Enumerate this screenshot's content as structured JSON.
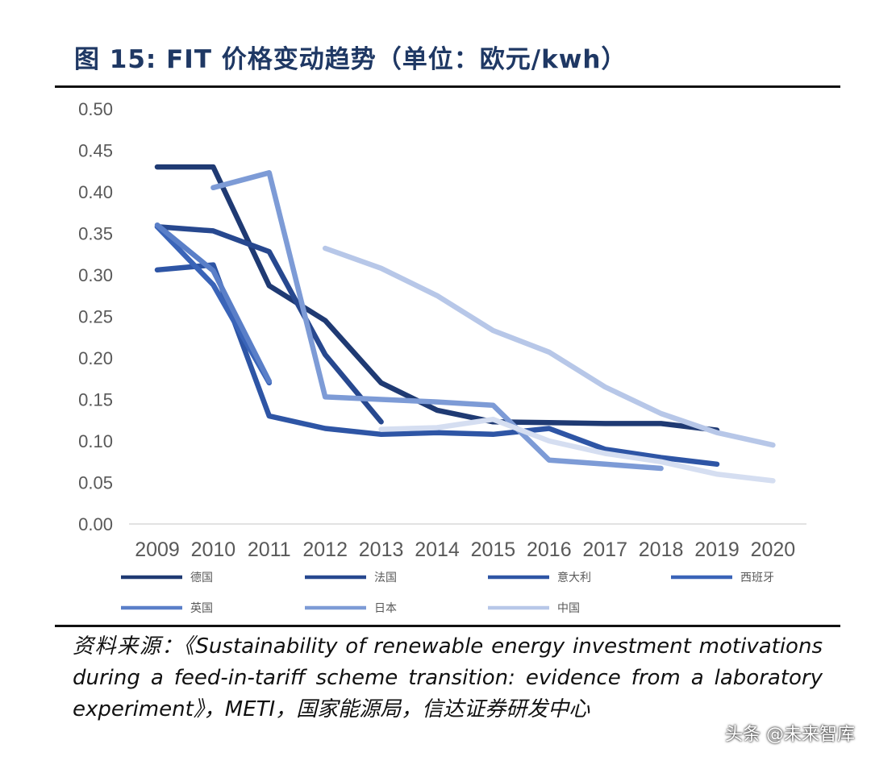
{
  "title": "图 15:  FIT 价格变动趋势（单位：欧元/kwh）",
  "source": "资料来源：《Sustainability of renewable energy investment motivations during a feed-in-tariff scheme transition: evidence from a laboratory experiment》，METI，国家能源局，信达证券研发中心",
  "watermark": "头条 @未来智库",
  "chart_data": {
    "type": "line",
    "title": "FIT 价格变动趋势（单位：欧元/kwh）",
    "xlabel": "",
    "ylabel": "",
    "x": [
      2009,
      2010,
      2011,
      2012,
      2013,
      2014,
      2015,
      2016,
      2017,
      2018,
      2019,
      2020
    ],
    "ylim": [
      0,
      0.5
    ],
    "yticks": [
      "0.00",
      "0.05",
      "0.10",
      "0.15",
      "0.20",
      "0.25",
      "0.30",
      "0.35",
      "0.40",
      "0.45",
      "0.50"
    ],
    "grid": false,
    "legend_position": "bottom",
    "series": [
      {
        "name": "德国",
        "color": "#1f3a73",
        "points": [
          [
            2009,
            0.43
          ],
          [
            2010,
            0.43
          ],
          [
            2011,
            0.287
          ],
          [
            2012,
            0.245
          ],
          [
            2013,
            0.17
          ],
          [
            2014,
            0.137
          ],
          [
            2015,
            0.123
          ],
          [
            2016,
            0.122
          ],
          [
            2017,
            0.121
          ],
          [
            2018,
            0.121
          ],
          [
            2019,
            0.113
          ]
        ]
      },
      {
        "name": "法国",
        "color": "#27488f",
        "points": [
          [
            2009,
            0.358
          ],
          [
            2010,
            0.353
          ],
          [
            2011,
            0.328
          ],
          [
            2012,
            0.204
          ],
          [
            2013,
            0.123
          ]
        ]
      },
      {
        "name": "意大利",
        "color": "#2e55a5",
        "points": [
          [
            2009,
            0.306
          ],
          [
            2010,
            0.312
          ],
          [
            2011,
            0.13
          ],
          [
            2012,
            0.115
          ],
          [
            2013,
            0.108
          ],
          [
            2014,
            0.11
          ],
          [
            2015,
            0.108
          ],
          [
            2016,
            0.115
          ],
          [
            2017,
            0.09
          ],
          [
            2018,
            0.08
          ],
          [
            2019,
            0.072
          ]
        ]
      },
      {
        "name": "西班牙",
        "color": "#3a64b8",
        "points": [
          [
            2009,
            0.358
          ],
          [
            2010,
            0.288
          ],
          [
            2011,
            0.17
          ]
        ]
      },
      {
        "name": "英国",
        "color": "#5a7fc8",
        "points": [
          [
            2009,
            0.36
          ],
          [
            2010,
            0.305
          ],
          [
            2011,
            0.172
          ]
        ]
      },
      {
        "name": "日本",
        "color": "#7d9bd6",
        "points": [
          [
            2010,
            0.405
          ],
          [
            2011,
            0.423
          ],
          [
            2012,
            0.153
          ],
          [
            2013,
            0.15
          ],
          [
            2014,
            0.147
          ],
          [
            2015,
            0.143
          ],
          [
            2016,
            0.077
          ],
          [
            2017,
            0.072
          ],
          [
            2018,
            0.067
          ]
        ]
      },
      {
        "name": "中国",
        "color": "#b7c7e8",
        "points": [
          [
            2012,
            0.332
          ],
          [
            2013,
            0.308
          ],
          [
            2014,
            0.275
          ],
          [
            2015,
            0.233
          ],
          [
            2016,
            0.207
          ],
          [
            2017,
            0.165
          ],
          [
            2018,
            0.133
          ],
          [
            2019,
            0.11
          ],
          [
            2020,
            0.095
          ]
        ]
      },
      {
        "name": "",
        "color": "#d5def1",
        "points": [
          [
            2013,
            0.114
          ],
          [
            2014,
            0.116
          ],
          [
            2015,
            0.126
          ],
          [
            2016,
            0.1
          ],
          [
            2017,
            0.085
          ],
          [
            2018,
            0.075
          ],
          [
            2019,
            0.06
          ],
          [
            2020,
            0.052
          ]
        ]
      }
    ]
  }
}
